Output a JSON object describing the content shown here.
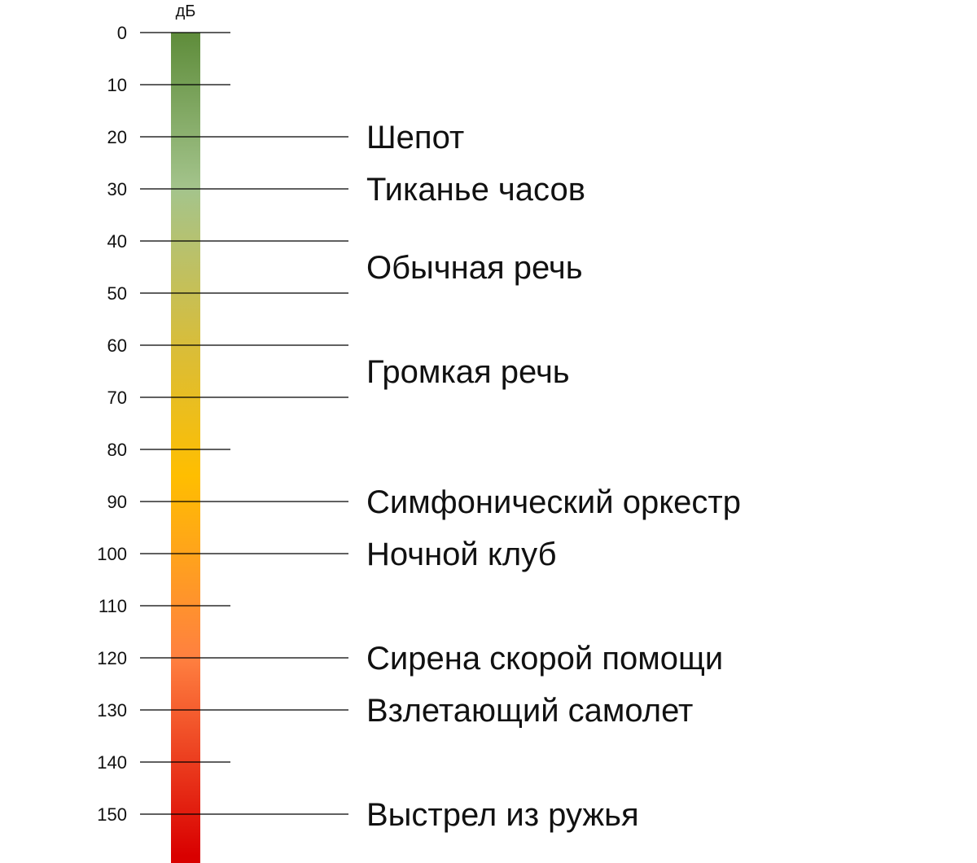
{
  "unit_label": "дБ",
  "scale": {
    "min": 0,
    "max": 150,
    "step": 10,
    "ticks": [
      "0",
      "10",
      "20",
      "30",
      "40",
      "50",
      "60",
      "70",
      "80",
      "90",
      "100",
      "110",
      "120",
      "130",
      "140",
      "150"
    ]
  },
  "gradient_stops": [
    {
      "value": 0,
      "color": "#5e8c3a"
    },
    {
      "value": 30,
      "color": "#a4c48c"
    },
    {
      "value": 60,
      "color": "#d8bd3a"
    },
    {
      "value": 85,
      "color": "#ffbe00"
    },
    {
      "value": 120,
      "color": "#ff8040"
    },
    {
      "value": 158,
      "color": "#d90000"
    }
  ],
  "items": [
    {
      "label": "Шепот",
      "value": 20,
      "lines": [
        20
      ]
    },
    {
      "label": "Тиканье часов",
      "value": 30,
      "lines": [
        30
      ]
    },
    {
      "label": "Обычная речь",
      "value": 45,
      "lines": [
        40,
        50
      ]
    },
    {
      "label": "Громкая речь",
      "value": 65,
      "lines": [
        60,
        70
      ]
    },
    {
      "label": "Симфонический оркестр",
      "value": 90,
      "lines": [
        90
      ]
    },
    {
      "label": "Ночной клуб",
      "value": 100,
      "lines": [
        100
      ]
    },
    {
      "label": "Сирена скорой помощи",
      "value": 120,
      "lines": [
        120
      ]
    },
    {
      "label": "Взлетающий самолет",
      "value": 130,
      "lines": [
        130
      ]
    },
    {
      "label": "Выстрел из ружья",
      "value": 150,
      "lines": [
        150
      ]
    }
  ]
}
